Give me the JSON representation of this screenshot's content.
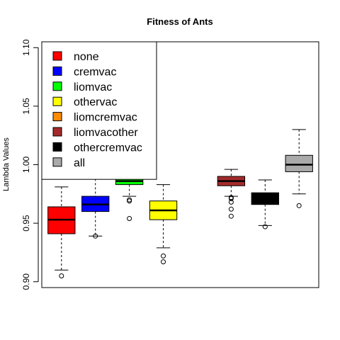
{
  "chart_data": {
    "type": "boxplot",
    "title": "Fitness of Ants",
    "xlabel": "",
    "ylabel": "Lambda Values",
    "ylim": [
      0.895,
      1.105
    ],
    "yticks": [
      "0.90",
      "0.95",
      "1.00",
      "1.05",
      "1.10"
    ],
    "legend_position": "top-left",
    "series": [
      {
        "name": "none",
        "color": "#ff0000",
        "whisker_low": 0.91,
        "q1": 0.941,
        "median": 0.953,
        "q3": 0.964,
        "whisker_high": 0.981,
        "outliers": [
          0.905
        ]
      },
      {
        "name": "cremvac",
        "color": "#0000ff",
        "whisker_low": 0.939,
        "q1": 0.96,
        "median": 0.966,
        "q3": 0.973,
        "whisker_high": 0.988,
        "outliers": [
          0.939
        ]
      },
      {
        "name": "liomvac",
        "color": "#00ff00",
        "whisker_low": 0.973,
        "q1": 0.983,
        "median": 0.986,
        "q3": 0.99,
        "whisker_high": 0.997,
        "outliers": [
          0.97,
          0.969,
          0.954
        ]
      },
      {
        "name": "othervac",
        "color": "#ffff00",
        "whisker_low": 0.929,
        "q1": 0.953,
        "median": 0.961,
        "q3": 0.969,
        "whisker_high": 0.983,
        "outliers": [
          0.922,
          0.917
        ]
      },
      {
        "name": "liomcremvac",
        "color": "#ff8c00",
        "whisker_low": null,
        "q1": null,
        "median": null,
        "q3": null,
        "whisker_high": null,
        "outliers": []
      },
      {
        "name": "liomvacother",
        "color": "#a52a2a",
        "whisker_low": 0.973,
        "q1": 0.982,
        "median": 0.986,
        "q3": 0.99,
        "whisker_high": 0.996,
        "outliers": [
          0.972,
          0.971,
          0.968,
          0.962,
          0.956
        ]
      },
      {
        "name": "othercremvac",
        "color": "#000000",
        "whisker_low": 0.948,
        "q1": 0.966,
        "median": 0.971,
        "q3": 0.976,
        "whisker_high": 0.987,
        "outliers": [
          0.947
        ]
      },
      {
        "name": "all",
        "color": "#aaaaaa",
        "whisker_low": 0.975,
        "q1": 0.994,
        "median": 1.0,
        "q3": 1.008,
        "whisker_high": 1.03,
        "outliers": [
          0.965
        ]
      }
    ]
  }
}
